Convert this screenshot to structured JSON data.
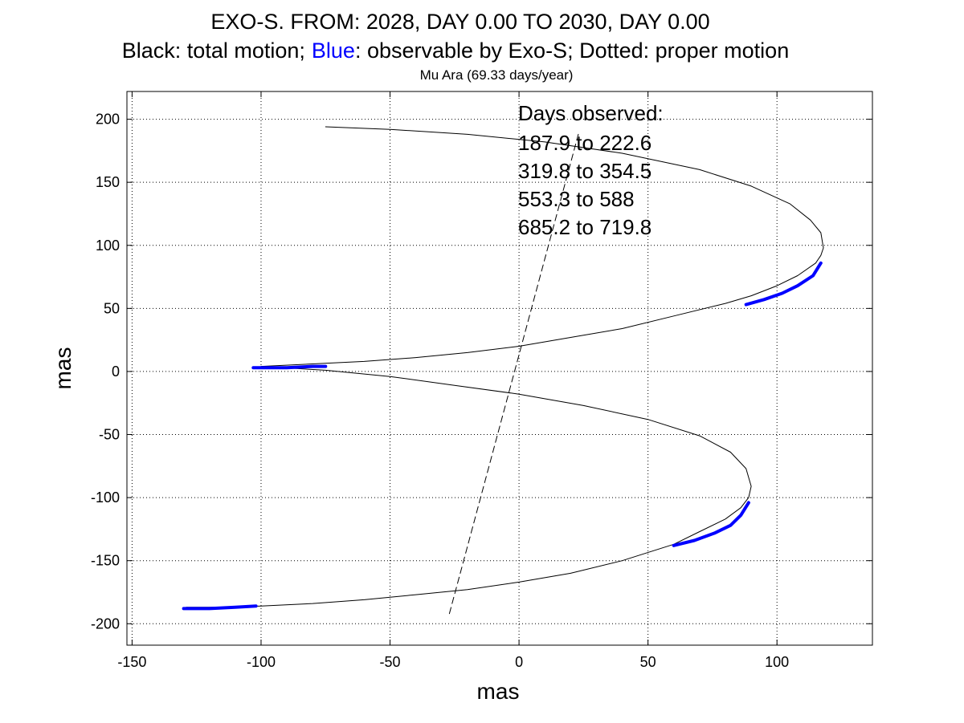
{
  "chart_data": {
    "type": "line",
    "title_line1": "EXO-S. FROM: 2028, DAY 0.00 TO 2030, DAY 0.00",
    "title_line2": {
      "part1": "Black: total motion;",
      "part2": "Blue",
      "part3": ": observable by Exo-S; Dotted: proper motion"
    },
    "subtitle": "Mu Ara (69.33 days/year)",
    "xlabel": "mas",
    "ylabel": "mas",
    "xlim": [
      -152,
      137
    ],
    "ylim": [
      -217,
      222
    ],
    "xticks": [
      -150,
      -100,
      -50,
      0,
      50,
      100
    ],
    "yticks": [
      -200,
      -150,
      -100,
      -50,
      0,
      50,
      100,
      150,
      200
    ],
    "grid": true,
    "annotation": {
      "heading": "Days observed:",
      "ranges": [
        "187.9 to 222.6",
        "319.8 to 354.5",
        "553.3 to 588",
        "685.2 to 719.8"
      ]
    },
    "colors": {
      "total": "#000000",
      "observable": "#0000ff",
      "proper": "#000000"
    },
    "series": [
      {
        "style": "solid-thin",
        "x": [
          -75,
          -50,
          -20,
          10,
          40,
          70,
          90,
          105,
          113,
          117,
          118,
          117,
          115,
          108,
          100,
          90,
          80,
          60,
          40,
          20,
          0,
          -20,
          -40,
          -60,
          -80,
          -100,
          -75,
          -50,
          -25,
          0,
          25,
          50,
          70,
          82,
          88,
          90,
          89,
          86,
          80,
          70,
          60,
          40,
          20,
          0,
          -20,
          -40,
          -60,
          -80,
          -100,
          -115,
          -129
        ],
        "y": [
          194,
          192,
          188,
          182,
          173,
          160,
          147,
          133,
          120,
          110,
          98,
          92,
          86,
          76,
          68,
          60,
          54,
          44,
          34,
          27,
          20,
          15,
          11,
          8,
          6,
          4,
          1,
          -4,
          -11,
          -18,
          -27,
          -38,
          -51,
          -64,
          -77,
          -91,
          -100,
          -108,
          -117,
          -127,
          -137,
          -150,
          -160,
          -167,
          -173,
          -177,
          -181,
          -184,
          -186,
          -187,
          -187
        ]
      },
      {
        "style": "dashed",
        "x": [
          -27,
          23
        ],
        "y": [
          -192,
          188
        ]
      },
      {
        "style": "thick-blue",
        "x": [
          -103,
          -90,
          -80,
          -75
        ],
        "y": [
          3,
          3,
          4,
          4
        ]
      },
      {
        "style": "thick-blue",
        "x": [
          88,
          95,
          102,
          108,
          114,
          117
        ],
        "y": [
          53,
          57,
          62,
          68,
          76,
          86
        ]
      },
      {
        "style": "thick-blue",
        "x": [
          60,
          68,
          76,
          82,
          86,
          89
        ],
        "y": [
          -138,
          -134,
          -128,
          -122,
          -114,
          -104
        ]
      },
      {
        "style": "thick-blue",
        "x": [
          -130,
          -120,
          -110,
          -102
        ],
        "y": [
          -188,
          -188,
          -187,
          -186
        ]
      }
    ]
  }
}
